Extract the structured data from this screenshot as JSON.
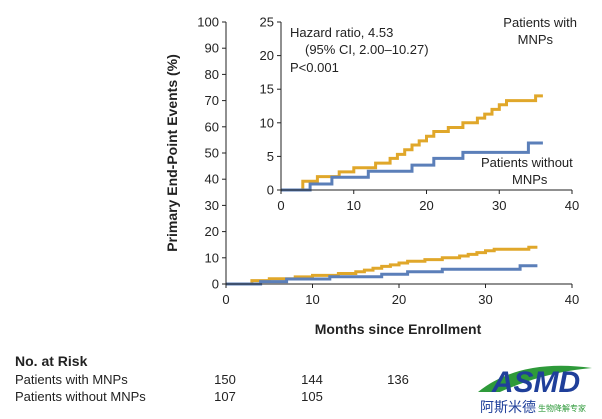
{
  "chart_data": [
    {
      "type": "line",
      "name": "main",
      "title": "",
      "xlabel": "Months since Enrollment",
      "ylabel": "Primary End-Point Events (%)",
      "xlim": [
        0,
        40
      ],
      "ylim": [
        0,
        100
      ],
      "xticks": [
        0,
        10,
        20,
        30,
        40
      ],
      "yticks": [
        0,
        10,
        20,
        30,
        40,
        50,
        60,
        70,
        80,
        90,
        100
      ],
      "series": [
        {
          "name": "Patients with MNPs",
          "color": "#e0a72a",
          "x": [
            0,
            3,
            3,
            5,
            5,
            8,
            8,
            10,
            10,
            13,
            13,
            15,
            15,
            16,
            16,
            17,
            17,
            18,
            18,
            19,
            19,
            20,
            20,
            21,
            21,
            23,
            23,
            25,
            25,
            27,
            27,
            28,
            28,
            29,
            29,
            30,
            30,
            31,
            31,
            35,
            35,
            36
          ],
          "y": [
            0,
            0,
            1.3,
            1.3,
            2,
            2,
            2.7,
            2.7,
            3.3,
            3.3,
            4,
            4,
            4.7,
            4.7,
            5.3,
            5.3,
            6,
            6,
            6.7,
            6.7,
            7.3,
            7.3,
            8,
            8,
            8.7,
            8.7,
            9.3,
            9.3,
            10,
            10,
            10.7,
            10.7,
            11.3,
            11.3,
            12,
            12,
            12.7,
            12.7,
            13.3,
            13.3,
            14,
            14
          ]
        },
        {
          "name": "Patients without MNPs",
          "color": "#5b7fb9",
          "x": [
            0,
            4,
            4,
            7,
            7,
            12,
            12,
            18,
            18,
            21,
            21,
            25,
            25,
            34,
            34,
            36
          ],
          "y": [
            0,
            0,
            0.9,
            0.9,
            1.9,
            1.9,
            2.8,
            2.8,
            3.7,
            3.7,
            4.7,
            4.7,
            5.6,
            5.6,
            7.0,
            7.0
          ]
        }
      ]
    },
    {
      "type": "line",
      "name": "inset",
      "xlim": [
        0,
        40
      ],
      "ylim": [
        0,
        25
      ],
      "xticks": [
        0,
        10,
        20,
        30,
        40
      ],
      "yticks": [
        0,
        5,
        10,
        15,
        20,
        25
      ],
      "annotation": {
        "line1": "Hazard ratio, 4.53",
        "line2": "(95% CI, 2.00–10.27)",
        "line3": "P<0.001"
      },
      "labels": {
        "with_line1": "Patients with",
        "with_line2": "MNPs",
        "without_line1": "Patients without",
        "without_line2": "MNPs"
      },
      "series": [
        {
          "name": "Patients with MNPs",
          "color": "#e0a72a",
          "x": [
            0,
            3,
            3,
            5,
            5,
            8,
            8,
            10,
            10,
            13,
            13,
            15,
            15,
            16,
            16,
            17,
            17,
            18,
            18,
            19,
            19,
            20,
            20,
            21,
            21,
            23,
            23,
            25,
            25,
            27,
            27,
            28,
            28,
            29,
            29,
            30,
            30,
            31,
            31,
            35,
            35,
            36
          ],
          "y": [
            0,
            0,
            1.3,
            1.3,
            2,
            2,
            2.7,
            2.7,
            3.3,
            3.3,
            4,
            4,
            4.7,
            4.7,
            5.3,
            5.3,
            6,
            6,
            6.7,
            6.7,
            7.3,
            7.3,
            8,
            8,
            8.7,
            8.7,
            9.3,
            9.3,
            10,
            10,
            10.7,
            10.7,
            11.3,
            11.3,
            12,
            12,
            12.7,
            12.7,
            13.3,
            13.3,
            14,
            14
          ]
        },
        {
          "name": "Patients without MNPs",
          "color": "#5b7fb9",
          "x": [
            0,
            4,
            4,
            7,
            7,
            12,
            12,
            18,
            18,
            21,
            21,
            25,
            25,
            34,
            34,
            36
          ],
          "y": [
            0,
            0,
            0.9,
            0.9,
            1.9,
            1.9,
            2.8,
            2.8,
            3.7,
            3.7,
            4.7,
            4.7,
            5.6,
            5.6,
            7.0,
            7.0
          ]
        }
      ]
    }
  ],
  "risk_table": {
    "heading": "No. at Risk",
    "rows": [
      {
        "label": "Patients with MNPs",
        "values": [
          "150",
          "144",
          "136"
        ]
      },
      {
        "label": "Patients without MNPs",
        "values": [
          "107",
          "105",
          ""
        ]
      }
    ]
  },
  "watermark": {
    "logo_text": "ASMD",
    "sub_text_cn": "阿斯米德",
    "sub_text_small": "生物降解专家",
    "colors": {
      "blue": "#1f3f9a",
      "green": "#2e9a3a"
    }
  }
}
